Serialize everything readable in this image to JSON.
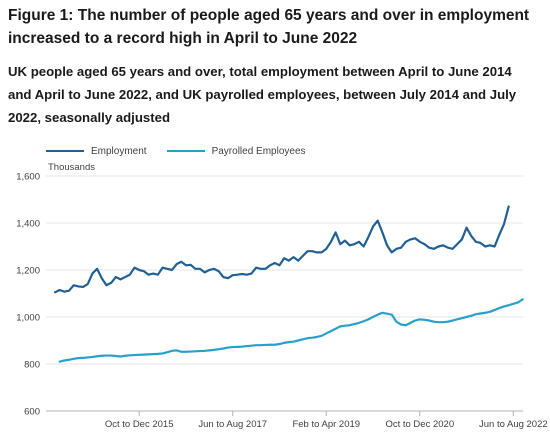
{
  "title": "Figure 1: The number of people aged 65 years and over in employment increased to a record high in April to June 2022",
  "subtitle": "UK people aged 65 years and over, total employment between April to June 2014 and April to June 2022, and UK payrolled employees, between July 2014 and July 2022, seasonally adjusted",
  "chart_data": {
    "type": "line",
    "title": "Figure 1: The number of people aged 65 years and over in employment increased to a record high in April to June 2022",
    "ylabel": "Thousands",
    "xlabel": "",
    "ylim": [
      600,
      1600
    ],
    "yticks": [
      600,
      800,
      1000,
      1200,
      1400,
      1600
    ],
    "yticklabels": [
      "600",
      "800",
      "1,000",
      "1,200",
      "1,400",
      "1,600"
    ],
    "xticklabels": [
      {
        "label": "Oct to Dec 2015",
        "index": 18
      },
      {
        "label": "Jun to Aug 2017",
        "index": 38
      },
      {
        "label": "Feb to Apr 2019",
        "index": 58
      },
      {
        "label": "Oct to Dec 2020",
        "index": 78
      },
      {
        "label": "Jun to Aug 2022",
        "index": 98
      }
    ],
    "grid": true,
    "legend_position": "top-left",
    "series": [
      {
        "name": "Employment",
        "color": "#206095",
        "start_index": 0,
        "values": [
          1105,
          1115,
          1108,
          1112,
          1135,
          1130,
          1128,
          1140,
          1185,
          1205,
          1165,
          1135,
          1145,
          1170,
          1160,
          1170,
          1180,
          1210,
          1200,
          1195,
          1180,
          1185,
          1180,
          1210,
          1205,
          1200,
          1225,
          1235,
          1220,
          1222,
          1205,
          1205,
          1190,
          1200,
          1205,
          1195,
          1170,
          1165,
          1178,
          1180,
          1183,
          1180,
          1185,
          1210,
          1205,
          1205,
          1220,
          1230,
          1220,
          1250,
          1240,
          1255,
          1240,
          1260,
          1280,
          1280,
          1275,
          1275,
          1290,
          1320,
          1360,
          1310,
          1325,
          1305,
          1310,
          1320,
          1300,
          1340,
          1385,
          1410,
          1360,
          1305,
          1275,
          1290,
          1295,
          1320,
          1330,
          1335,
          1320,
          1310,
          1295,
          1290,
          1300,
          1305,
          1295,
          1290,
          1310,
          1330,
          1380,
          1345,
          1320,
          1315,
          1300,
          1305,
          1300,
          1350,
          1395,
          1470
        ]
      },
      {
        "name": "Payrolled Employees",
        "color": "#27a0cc",
        "start_index": 1,
        "values": [
          810,
          815,
          818,
          822,
          825,
          826,
          828,
          830,
          833,
          835,
          836,
          836,
          834,
          832,
          835,
          837,
          838,
          839,
          840,
          841,
          842,
          843,
          845,
          850,
          856,
          858,
          852,
          852,
          853,
          854,
          855,
          856,
          858,
          860,
          863,
          866,
          870,
          872,
          873,
          874,
          876,
          878,
          880,
          880,
          881,
          882,
          882,
          885,
          890,
          893,
          895,
          900,
          905,
          910,
          912,
          915,
          920,
          930,
          940,
          950,
          960,
          963,
          965,
          970,
          975,
          982,
          990,
          1000,
          1010,
          1018,
          1014,
          1010,
          980,
          968,
          965,
          975,
          985,
          990,
          988,
          985,
          980,
          978,
          978,
          980,
          985,
          990,
          995,
          1000,
          1005,
          1012,
          1015,
          1018,
          1022,
          1030,
          1038,
          1045,
          1050,
          1056,
          1062,
          1075
        ]
      }
    ]
  }
}
